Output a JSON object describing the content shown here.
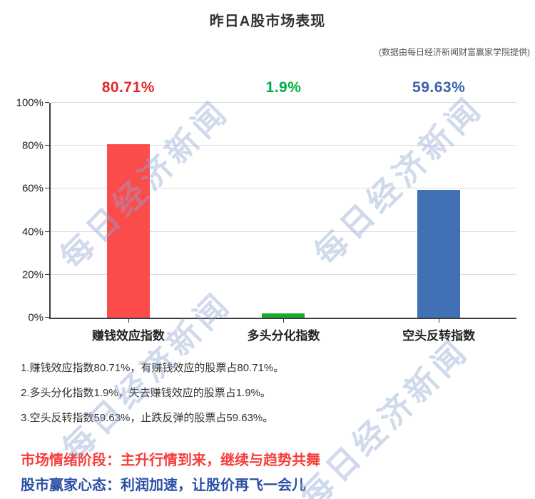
{
  "page": {
    "title": "昨日A股市场表现",
    "subtitle": "(数据由每日经济新闻财富赢家学院提供)"
  },
  "watermark": {
    "text": "每日经济新闻"
  },
  "chart_data": {
    "type": "bar",
    "title": "昨日A股市场表现",
    "categories": [
      "赚钱效应指数",
      "多头分化指数",
      "空头反转指数"
    ],
    "values": [
      80.71,
      1.9,
      59.63
    ],
    "value_labels": [
      "80.71%",
      "1.9%",
      "59.63%"
    ],
    "bar_colors": [
      "#fb4b4b",
      "#17ad2c",
      "#4170b5"
    ],
    "value_label_colors": [
      "#e02a2a",
      "#00ad42",
      "#3a62a8"
    ],
    "xlabel": "",
    "ylabel": "",
    "ylim": [
      0,
      100
    ],
    "yticks": [
      0,
      20,
      40,
      60,
      80,
      100
    ],
    "ytick_labels": [
      "0%",
      "20%",
      "40%",
      "60%",
      "80%",
      "100%"
    ],
    "grid": "horizontal",
    "legend": "none"
  },
  "notes": [
    "1.赚钱效应指数80.71%，有赚钱效应的股票占80.71%。",
    "2.多头分化指数1.9%，失去赚钱效应的股票占1.9%。",
    "3.空头反转指数59.63%，止跌反弹的股票占59.63%。"
  ],
  "sentiment": {
    "stage_line": "市场情绪阶段：主升行情到来，继续与趋势共舞",
    "stage_color": "#f73e3e",
    "mindset_line": "股市赢家心态：利润加速，让股价再飞一会儿",
    "mindset_color": "#2b4fa5"
  }
}
